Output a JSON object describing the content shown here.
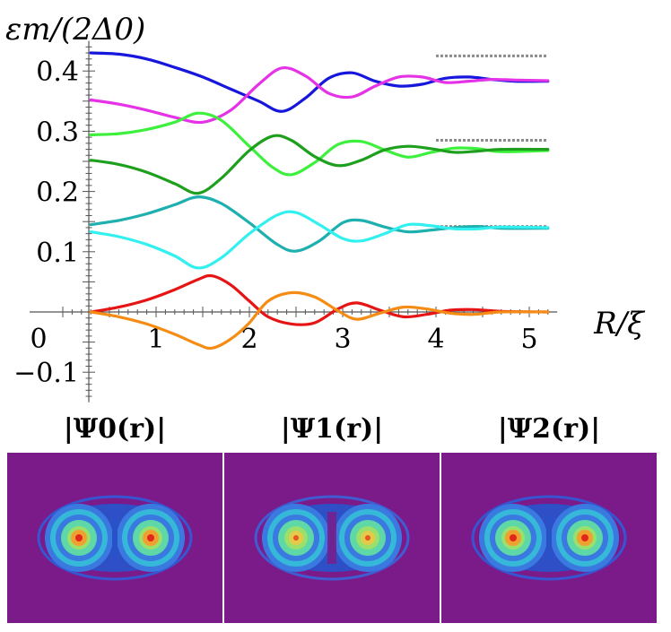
{
  "chart_data": {
    "type": "line",
    "ylabel": "εm/(2Δ0)",
    "xlabel": "R/ξ",
    "xlim": [
      -0.5,
      5.3
    ],
    "ylim": [
      -0.15,
      0.45
    ],
    "xticks": [
      0,
      1,
      2,
      3,
      4,
      5
    ],
    "yticks": [
      -0.1,
      0.1,
      0.2,
      0.3,
      0.4
    ],
    "xtick_labels": [
      "0",
      "1",
      "2",
      "3",
      "4",
      "5"
    ],
    "ytick_labels": [
      "−0.1",
      "0.1",
      "0.2",
      "0.3",
      "0.4"
    ],
    "series": [
      {
        "name": "blue",
        "color": "#1616dc",
        "x": [
          0.3,
          0.6,
          0.9,
          1.2,
          1.5,
          1.8,
          2.1,
          2.35,
          2.6,
          2.85,
          3.1,
          3.35,
          3.6,
          3.85,
          4.1,
          4.35,
          4.6,
          4.85,
          5.2
        ],
        "y": [
          0.43,
          0.428,
          0.42,
          0.406,
          0.39,
          0.37,
          0.35,
          0.333,
          0.355,
          0.388,
          0.397,
          0.383,
          0.375,
          0.378,
          0.388,
          0.39,
          0.386,
          0.383,
          0.383
        ]
      },
      {
        "name": "magenta",
        "color": "#e632e6",
        "x": [
          0.3,
          0.6,
          0.9,
          1.2,
          1.5,
          1.8,
          2.1,
          2.35,
          2.6,
          2.85,
          3.1,
          3.35,
          3.6,
          3.85,
          4.1,
          4.35,
          4.6,
          4.85,
          5.2
        ],
        "y": [
          0.352,
          0.345,
          0.335,
          0.323,
          0.315,
          0.335,
          0.378,
          0.405,
          0.392,
          0.363,
          0.357,
          0.375,
          0.39,
          0.39,
          0.381,
          0.383,
          0.386,
          0.385,
          0.384
        ]
      },
      {
        "name": "light-green",
        "color": "#3cf03c",
        "x": [
          0.3,
          0.6,
          0.9,
          1.2,
          1.45,
          1.7,
          2.0,
          2.25,
          2.45,
          2.7,
          2.95,
          3.2,
          3.45,
          3.7,
          3.95,
          4.2,
          4.45,
          4.7,
          5.2
        ],
        "y": [
          0.294,
          0.296,
          0.303,
          0.315,
          0.33,
          0.318,
          0.275,
          0.24,
          0.228,
          0.248,
          0.278,
          0.283,
          0.269,
          0.257,
          0.265,
          0.272,
          0.271,
          0.266,
          0.268
        ]
      },
      {
        "name": "dark-green",
        "color": "#1ea01e",
        "x": [
          0.3,
          0.6,
          0.9,
          1.2,
          1.45,
          1.7,
          2.0,
          2.25,
          2.45,
          2.7,
          2.95,
          3.2,
          3.45,
          3.7,
          3.95,
          4.2,
          4.45,
          4.7,
          5.2
        ],
        "y": [
          0.252,
          0.245,
          0.232,
          0.213,
          0.197,
          0.222,
          0.268,
          0.292,
          0.285,
          0.258,
          0.243,
          0.252,
          0.269,
          0.275,
          0.271,
          0.265,
          0.267,
          0.27,
          0.27
        ]
      },
      {
        "name": "teal",
        "color": "#1eafaf",
        "x": [
          0.3,
          0.6,
          0.9,
          1.2,
          1.45,
          1.7,
          2.0,
          2.3,
          2.5,
          2.75,
          3.0,
          3.2,
          3.45,
          3.7,
          3.95,
          4.2,
          4.45,
          4.7,
          5.2
        ],
        "y": [
          0.145,
          0.152,
          0.163,
          0.178,
          0.191,
          0.18,
          0.148,
          0.112,
          0.101,
          0.118,
          0.148,
          0.152,
          0.141,
          0.133,
          0.136,
          0.14,
          0.142,
          0.139,
          0.139
        ]
      },
      {
        "name": "cyan",
        "color": "#32f0f0",
        "x": [
          0.3,
          0.6,
          0.9,
          1.2,
          1.45,
          1.7,
          2.0,
          2.3,
          2.5,
          2.75,
          3.0,
          3.2,
          3.45,
          3.7,
          3.95,
          4.2,
          4.45,
          4.7,
          5.2
        ],
        "y": [
          0.133,
          0.125,
          0.112,
          0.093,
          0.073,
          0.09,
          0.13,
          0.161,
          0.165,
          0.145,
          0.122,
          0.118,
          0.13,
          0.145,
          0.143,
          0.138,
          0.138,
          0.141,
          0.14
        ]
      },
      {
        "name": "red",
        "color": "#e61414",
        "x": [
          0.3,
          0.6,
          0.9,
          1.2,
          1.45,
          1.6,
          1.8,
          2.0,
          2.2,
          2.45,
          2.7,
          2.95,
          3.15,
          3.4,
          3.65,
          3.9,
          4.15,
          4.4,
          4.7,
          5.2
        ],
        "y": [
          0.0,
          0.008,
          0.02,
          0.037,
          0.054,
          0.06,
          0.045,
          0.018,
          -0.008,
          -0.02,
          -0.018,
          0.005,
          0.015,
          0.003,
          -0.008,
          -0.004,
          0.003,
          0.004,
          0.001,
          0.0
        ]
      },
      {
        "name": "orange",
        "color": "#f58c14",
        "x": [
          0.3,
          0.6,
          0.9,
          1.2,
          1.45,
          1.6,
          1.8,
          2.0,
          2.2,
          2.45,
          2.7,
          2.95,
          3.15,
          3.4,
          3.65,
          3.9,
          4.15,
          4.4,
          4.7,
          5.2
        ],
        "y": [
          0.0,
          -0.008,
          -0.02,
          -0.037,
          -0.054,
          -0.06,
          -0.045,
          -0.018,
          0.018,
          0.032,
          0.025,
          0.002,
          -0.012,
          -0.002,
          0.008,
          0.005,
          -0.002,
          -0.004,
          0.0,
          0.0
        ]
      }
    ],
    "reference_lines": [
      {
        "y": 0.425,
        "x_from": 4.0,
        "x_to": 5.2,
        "color": "#8c8c8c"
      },
      {
        "y": 0.285,
        "x_from": 4.0,
        "x_to": 5.2,
        "color": "#8c8c8c"
      },
      {
        "y": 0.142,
        "x_from": 4.0,
        "x_to": 5.2,
        "color": "#8c8c8c"
      }
    ]
  },
  "panels": [
    {
      "label": "|Ψ0(r)|",
      "background": "#7b1b8a",
      "mode": "in-phase"
    },
    {
      "label": "|Ψ1(r)|",
      "background": "#7b1b8a",
      "mode": "anti-phase"
    },
    {
      "label": "|Ψ2(r)|",
      "background": "#7b1b8a",
      "mode": "in-phase"
    }
  ]
}
